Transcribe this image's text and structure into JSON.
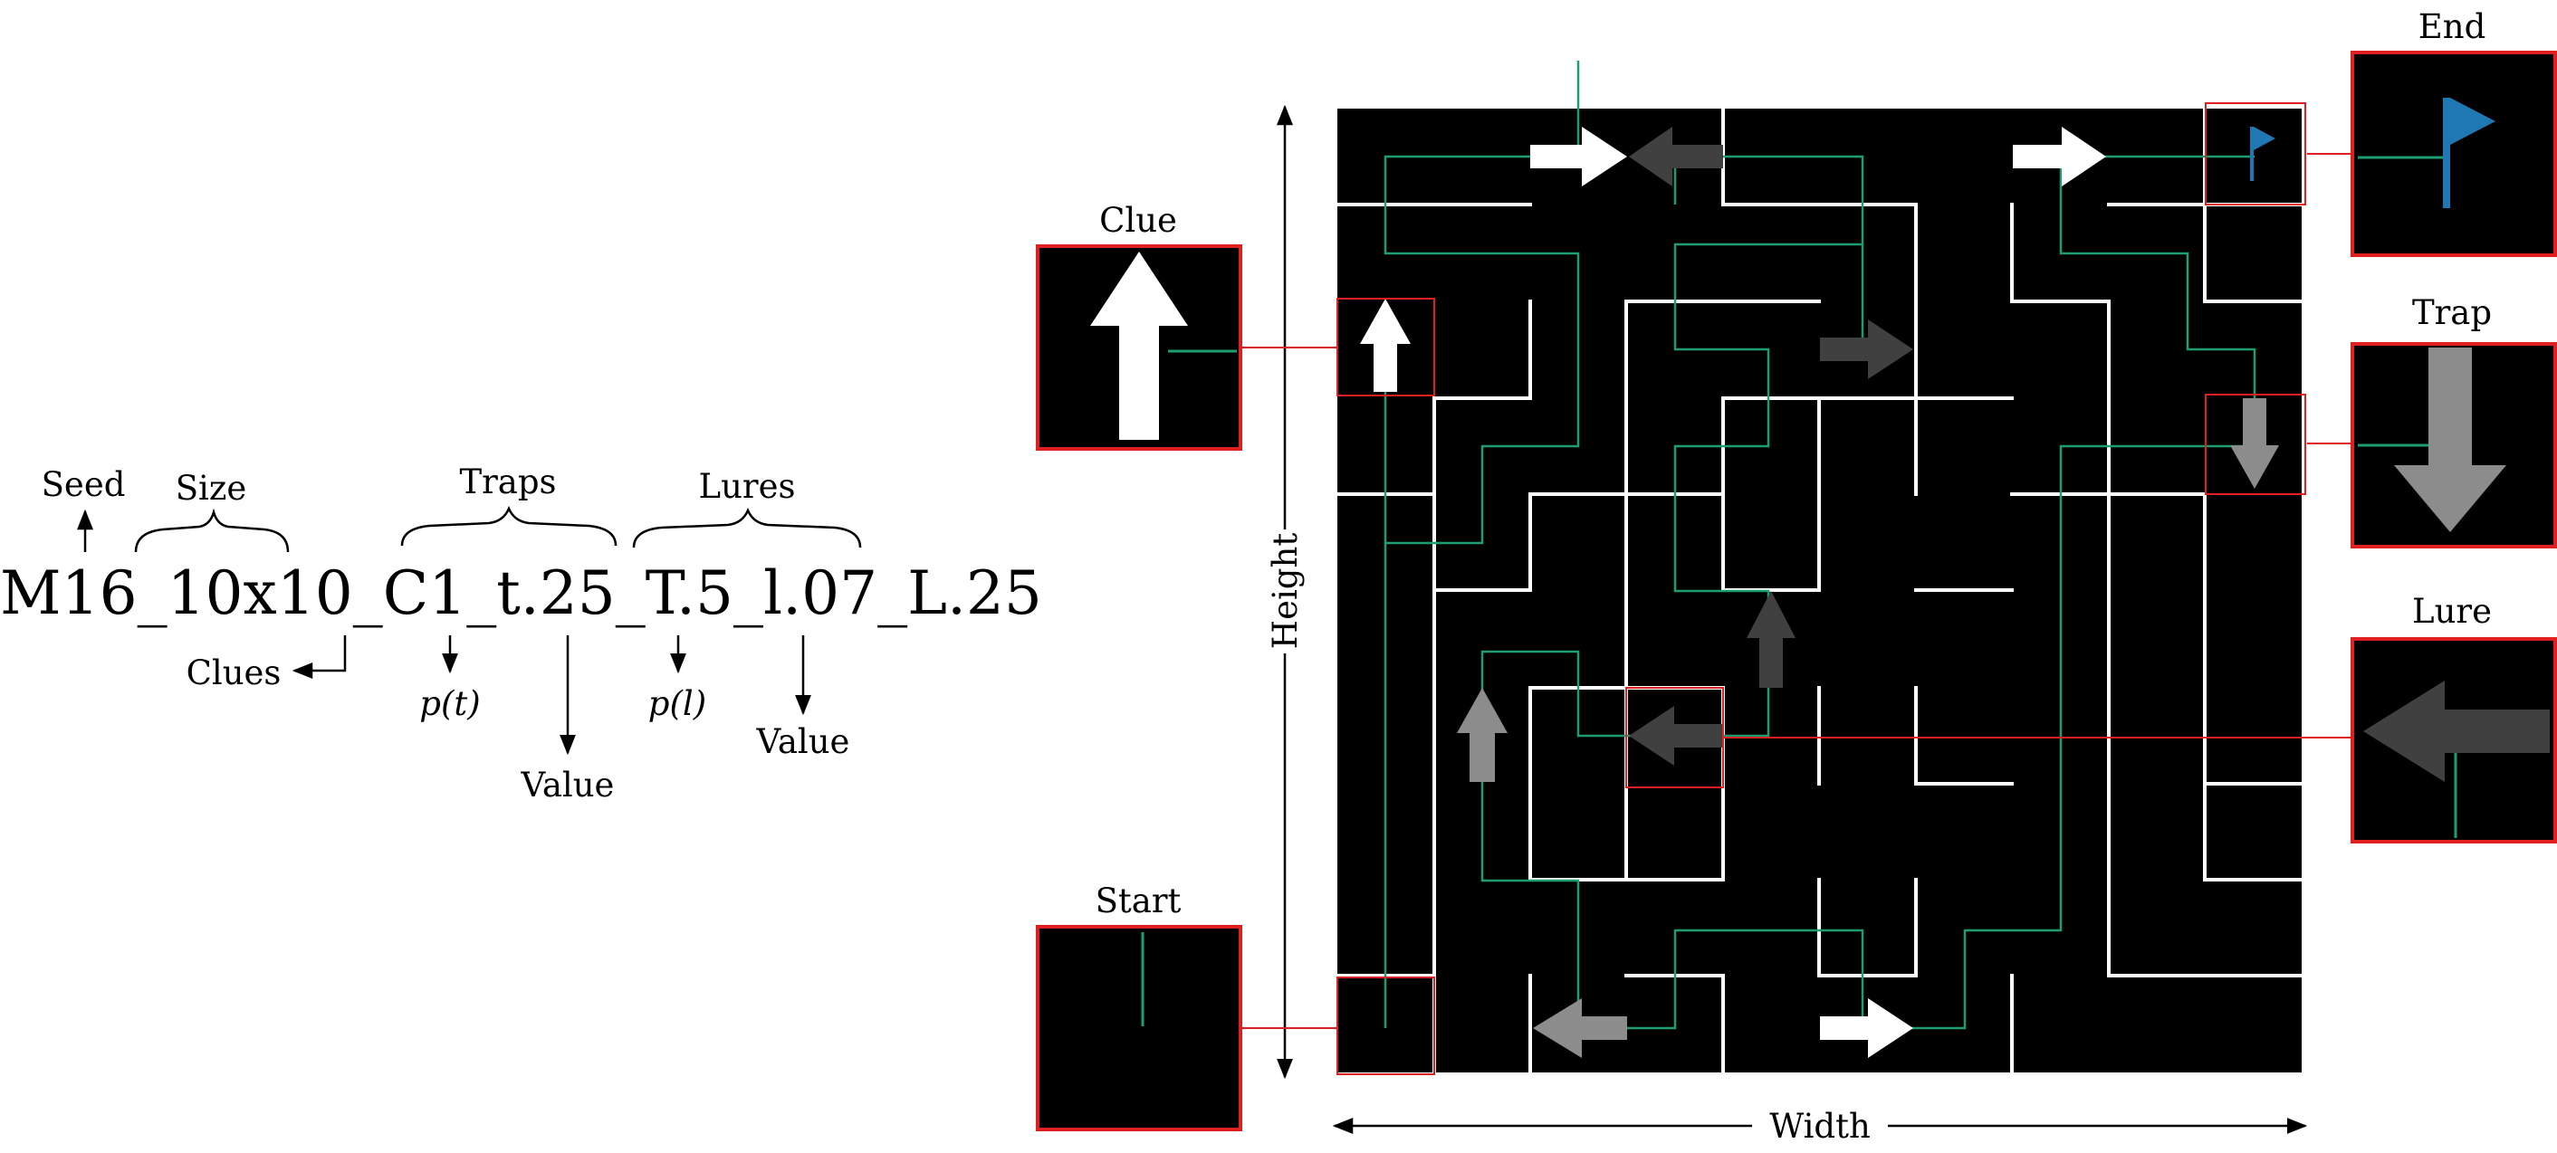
{
  "name_string": {
    "seed": "M16",
    "sep1": "_",
    "size": "10x10",
    "sep2": "_",
    "clues": "C1",
    "sep3": "_",
    "trap_prob": "t.25",
    "sep4": "_",
    "trap_value": "T.5",
    "sep5": "_",
    "lure_prob": "l.07",
    "sep6": "_",
    "lure_value": "L.25"
  },
  "annotations": {
    "seed": "Seed",
    "size": "Size",
    "traps": "Traps",
    "lures": "Lures",
    "clues": "Clues",
    "p_t": "p(t)",
    "p_l": "p(l)",
    "value_traps": "Value",
    "value_lures": "Value"
  },
  "maze": {
    "height_label": "Height",
    "width_label": "Width",
    "grid": "10x10",
    "colors": {
      "background": "#000000",
      "walls": "#ffffff",
      "path": "#1e9e6e",
      "clue": "#ffffff",
      "trap": "#8c8c8c",
      "lure": "#404040",
      "end_flag": "#1f77b4",
      "highlight": "#e02020"
    }
  },
  "insets": {
    "clue": "Clue",
    "start": "Start",
    "end": "End",
    "trap": "Trap",
    "lure": "Lure"
  }
}
